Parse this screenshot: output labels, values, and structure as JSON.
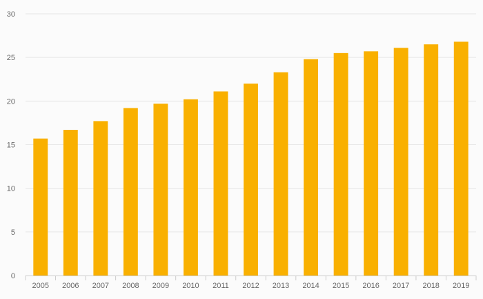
{
  "chart_data": {
    "type": "bar",
    "title": "",
    "xlabel": "",
    "ylabel": "",
    "categories": [
      "2005",
      "2006",
      "2007",
      "2008",
      "2009",
      "2010",
      "2011",
      "2012",
      "2013",
      "2014",
      "2015",
      "2016",
      "2017",
      "2018",
      "2019"
    ],
    "values": [
      15.7,
      16.7,
      17.7,
      19.2,
      19.7,
      20.2,
      21.1,
      22.0,
      23.3,
      24.8,
      25.5,
      25.7,
      26.1,
      26.5,
      26.8
    ],
    "ylim": [
      0,
      30
    ],
    "yticks": [
      0,
      5,
      10,
      15,
      20,
      25,
      30
    ],
    "grid": true,
    "legend": "none",
    "colors": {
      "bar": "#F9B000",
      "grid": "#e6e6e6",
      "axis": "#cccccc",
      "text": "#666666",
      "background": "#fbfbfb"
    }
  }
}
